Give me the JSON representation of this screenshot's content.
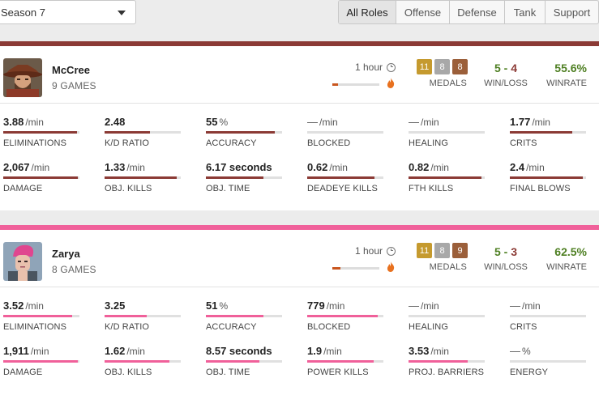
{
  "season": {
    "label": "Season 7"
  },
  "roles": [
    {
      "label": "All Roles",
      "active": true
    },
    {
      "label": "Offense",
      "active": false
    },
    {
      "label": "Defense",
      "active": false
    },
    {
      "label": "Tank",
      "active": false
    },
    {
      "label": "Support",
      "active": false
    }
  ],
  "colors": {
    "mccree_accent": "#8b3a35",
    "zarya_accent": "#f0609a",
    "win": "#4e7f22",
    "loss": "#8b3a35",
    "medal_gold": "#c59a2e",
    "medal_silver": "#a8a8a8",
    "medal_bronze": "#9b5f3a"
  },
  "heroes": [
    {
      "name": "McCree",
      "games": "9 GAMES",
      "playtime": "1 hour",
      "playtime_fraction": 0.12,
      "medals": {
        "gold": "11",
        "silver": "8",
        "bronze": "8",
        "label": "MEDALS"
      },
      "wins": "5",
      "losses": "4",
      "wl_sep": " - ",
      "wl_label": "WIN/LOSS",
      "winrate": "55.6%",
      "winrate_label": "WINRATE",
      "stats": [
        {
          "value": "3.88",
          "unit": "/min",
          "label": "ELIMINATIONS",
          "fill": 0.97
        },
        {
          "value": "2.48",
          "unit": "",
          "label": "K/D RATIO",
          "fill": 0.6
        },
        {
          "value": "55",
          "unit": "%",
          "label": "ACCURACY",
          "fill": 0.9
        },
        {
          "value": "—",
          "unit": "/min",
          "label": "BLOCKED",
          "fill": 0
        },
        {
          "value": "—",
          "unit": "/min",
          "label": "HEALING",
          "fill": 0
        },
        {
          "value": "1.77",
          "unit": "/min",
          "label": "CRITS",
          "fill": 0.82
        },
        {
          "value": "2,067",
          "unit": "/min",
          "label": "DAMAGE",
          "fill": 0.98
        },
        {
          "value": "1.33",
          "unit": "/min",
          "label": "OBJ. KILLS",
          "fill": 0.95
        },
        {
          "value": "6.17 seconds",
          "unit": "",
          "label": "OBJ. TIME",
          "fill": 0.76
        },
        {
          "value": "0.62",
          "unit": "/min",
          "label": "DEADEYE KILLS",
          "fill": 0.88
        },
        {
          "value": "0.82",
          "unit": "/min",
          "label": "FTH KILLS",
          "fill": 0.96
        },
        {
          "value": "2.4",
          "unit": "/min",
          "label": "FINAL BLOWS",
          "fill": 0.96
        }
      ]
    },
    {
      "name": "Zarya",
      "games": "8 GAMES",
      "playtime": "1 hour",
      "playtime_fraction": 0.18,
      "medals": {
        "gold": "11",
        "silver": "8",
        "bronze": "9",
        "label": "MEDALS"
      },
      "wins": "5",
      "losses": "3",
      "wl_sep": " - ",
      "wl_label": "WIN/LOSS",
      "winrate": "62.5%",
      "winrate_label": "WINRATE",
      "stats": [
        {
          "value": "3.52",
          "unit": "/min",
          "label": "ELIMINATIONS",
          "fill": 0.9
        },
        {
          "value": "3.25",
          "unit": "",
          "label": "K/D RATIO",
          "fill": 0.55
        },
        {
          "value": "51",
          "unit": "%",
          "label": "ACCURACY",
          "fill": 0.76
        },
        {
          "value": "779",
          "unit": "/min",
          "label": "BLOCKED",
          "fill": 0.93
        },
        {
          "value": "—",
          "unit": "/min",
          "label": "HEALING",
          "fill": 0
        },
        {
          "value": "—",
          "unit": "/min",
          "label": "CRITS",
          "fill": 0
        },
        {
          "value": "1,911",
          "unit": "/min",
          "label": "DAMAGE",
          "fill": 0.98
        },
        {
          "value": "1.62",
          "unit": "/min",
          "label": "OBJ. KILLS",
          "fill": 0.85
        },
        {
          "value": "8.57 seconds",
          "unit": "",
          "label": "OBJ. TIME",
          "fill": 0.7
        },
        {
          "value": "1.9",
          "unit": "/min",
          "label": "POWER KILLS",
          "fill": 0.87
        },
        {
          "value": "3.53",
          "unit": "/min",
          "label": "PROJ. BARRIERS",
          "fill": 0.78
        },
        {
          "value": "—",
          "unit": "%",
          "label": "ENERGY",
          "fill": 0
        }
      ]
    }
  ]
}
